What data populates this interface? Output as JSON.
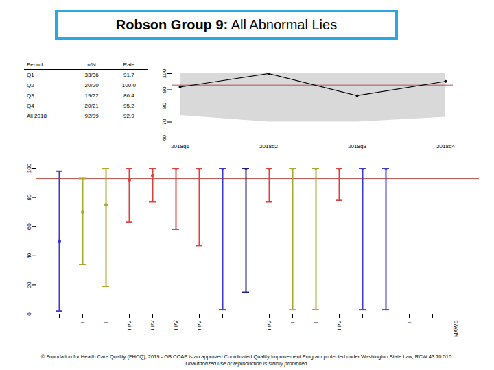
{
  "title": {
    "bold": "Robson Group 9:",
    "text": "All Abnormal Lies"
  },
  "table": {
    "header": [
      "Period",
      "n/N",
      "Rate"
    ],
    "rows": [
      [
        "Q1",
        "33/36",
        "91.7"
      ],
      [
        "Q2",
        "20/20",
        "100.0"
      ],
      [
        "Q3",
        "19/22",
        "86.4"
      ],
      [
        "Q4",
        "20/21",
        "95.2"
      ],
      [
        "All 2018",
        "92/99",
        "92.9"
      ]
    ]
  },
  "chart_data": [
    {
      "type": "line",
      "categories": [
        "2018q1",
        "2018q2",
        "2018q3",
        "2018q4"
      ],
      "values": [
        91.7,
        100,
        86.4,
        95.2
      ],
      "color": "#000000",
      "band_lower": [
        74,
        70,
        70,
        73
      ],
      "band_upper": [
        100,
        100,
        100,
        100
      ],
      "reference": 92.9,
      "ylim": [
        60,
        100
      ],
      "yticks": [
        60,
        70,
        80,
        90,
        100
      ]
    },
    {
      "type": "errorbar",
      "categories": [
        "I",
        "II",
        "II",
        "III/V",
        "III/V",
        "III/V",
        "III/V",
        "I",
        "I",
        "III/V",
        "II",
        "II",
        "III/V",
        "I",
        "I",
        "II",
        null,
        "MAWS"
      ],
      "values": [
        50,
        70,
        75,
        92,
        95,
        100,
        100,
        100,
        100,
        100,
        100,
        100,
        100,
        100,
        100,
        null,
        null,
        null
      ],
      "lower": [
        2,
        34,
        19,
        63,
        77,
        58,
        47,
        3,
        15,
        77,
        3,
        3,
        78,
        3,
        3,
        null,
        null,
        null
      ],
      "upper": [
        98,
        93,
        100,
        100,
        100,
        100,
        100,
        100,
        100,
        100,
        100,
        100,
        100,
        100,
        100,
        null,
        null,
        null
      ],
      "colors": [
        "#3a3acc",
        "#a8a832",
        "#a8a832",
        "#e0403a",
        "#e0403a",
        "#e0403a",
        "#e0403a",
        "#3a3acc",
        "#1f1f7a",
        "#e0403a",
        "#a8a832",
        "#a8a832",
        "#e0403a",
        "#3a3acc",
        "#3a3acc",
        null,
        null,
        null
      ],
      "reference": 92.9,
      "ylim": [
        0,
        100
      ],
      "yticks": [
        0,
        20,
        40,
        60,
        80,
        100
      ]
    }
  ],
  "footer": [
    "© Foundation for Health Care Quality (FHCQ), 2019 - OB COAP is an approved Coordinated Quality Improvement Program protected under Washington State Law, RCW 43.70.510.",
    "Unauthorized use or reproduction is strictly prohibited."
  ]
}
